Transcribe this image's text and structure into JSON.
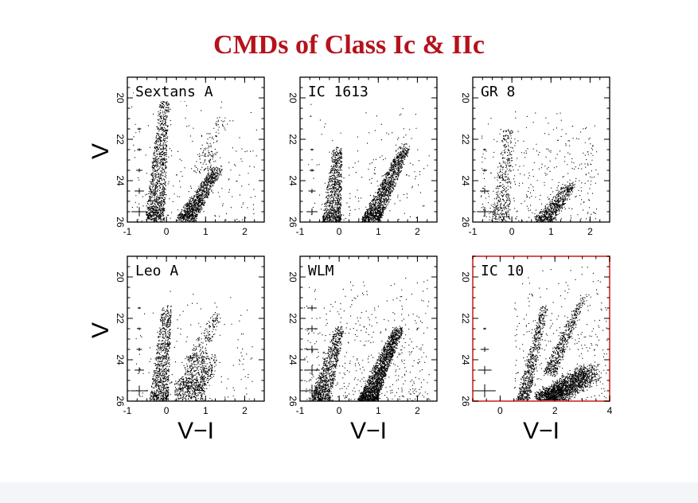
{
  "slide": {
    "title": "CMDs of Class Ic & IIc"
  },
  "colors": {
    "title": "#b5121b",
    "highlight_frame": "#d9534f",
    "points": "#000000"
  },
  "axes_titles": {
    "y": "V",
    "x": "V−I"
  },
  "chart_data": [
    {
      "type": "scatter",
      "name": "Sextans A",
      "label": "Sextans A",
      "xlim": [
        -1,
        2.5
      ],
      "ylim": [
        26,
        19
      ],
      "xticks": [
        -1,
        0,
        1,
        2
      ],
      "yticks": [
        20,
        22,
        24,
        26
      ],
      "features": [
        {
          "kind": "main_sequence",
          "x": [
            -0.3,
            -0.05
          ],
          "y": [
            25.8,
            20.0
          ],
          "n": 1200
        },
        {
          "kind": "red_giant_branch",
          "x": [
            0.5,
            1.3
          ],
          "y": [
            25.8,
            23.4
          ],
          "n": 1100
        },
        {
          "kind": "red_supergiants",
          "x": [
            0.9,
            1.4
          ],
          "y": [
            23.5,
            21.0
          ],
          "n": 120
        },
        {
          "kind": "field",
          "x": [
            -0.9,
            2.3
          ],
          "y": [
            26,
            19.5
          ],
          "n": 200
        }
      ],
      "error_bars": [
        {
          "v": 21.5,
          "dx": 0.05
        },
        {
          "v": 22.5,
          "dx": 0.06
        },
        {
          "v": 23.5,
          "dx": 0.08
        },
        {
          "v": 24.5,
          "dx": 0.12
        },
        {
          "v": 25.5,
          "dx": 0.2
        }
      ]
    },
    {
      "type": "scatter",
      "name": "IC 1613",
      "label": "IC 1613",
      "xlim": [
        -1,
        2.5
      ],
      "ylim": [
        26,
        19
      ],
      "xticks": [
        -1,
        0,
        1,
        2
      ],
      "yticks": [
        20,
        22,
        24,
        26
      ],
      "features": [
        {
          "kind": "main_sequence",
          "x": [
            -0.2,
            -0.05
          ],
          "y": [
            25.9,
            22.5
          ],
          "n": 900
        },
        {
          "kind": "red_giant_branch",
          "x": [
            0.8,
            1.7
          ],
          "y": [
            25.9,
            22.3
          ],
          "n": 1400
        },
        {
          "kind": "field",
          "x": [
            -0.8,
            2.3
          ],
          "y": [
            26,
            20.2
          ],
          "n": 180
        }
      ],
      "error_bars": [
        {
          "v": 22.5,
          "dx": 0.04
        },
        {
          "v": 23.5,
          "dx": 0.06
        },
        {
          "v": 24.5,
          "dx": 0.09
        },
        {
          "v": 25.5,
          "dx": 0.14
        }
      ]
    },
    {
      "type": "scatter",
      "name": "GR 8",
      "label": "GR 8",
      "xlim": [
        -1,
        2.5
      ],
      "ylim": [
        26,
        19
      ],
      "xticks": [
        -1,
        0,
        1,
        2
      ],
      "yticks": [
        20,
        22,
        24,
        26
      ],
      "features": [
        {
          "kind": "main_sequence",
          "x": [
            -0.3,
            -0.1
          ],
          "y": [
            25.9,
            21.5
          ],
          "n": 400
        },
        {
          "kind": "red_giant_branch",
          "x": [
            0.8,
            1.5
          ],
          "y": [
            25.9,
            24.2
          ],
          "n": 650
        },
        {
          "kind": "field",
          "x": [
            -0.8,
            2.2
          ],
          "y": [
            26,
            20.5
          ],
          "n": 380
        }
      ],
      "error_bars": [
        {
          "v": 22.5,
          "dx": 0.04
        },
        {
          "v": 23.5,
          "dx": 0.06
        },
        {
          "v": 24.5,
          "dx": 0.12
        },
        {
          "v": 25.5,
          "dx": 0.2
        }
      ]
    },
    {
      "type": "scatter",
      "name": "Leo A",
      "label": "Leo A",
      "xlim": [
        -1,
        2.5
      ],
      "ylim": [
        26,
        19
      ],
      "xticks": [
        -1,
        0,
        1,
        2
      ],
      "yticks": [
        20,
        22,
        24,
        26
      ],
      "features": [
        {
          "kind": "main_sequence",
          "x": [
            -0.2,
            0.0
          ],
          "y": [
            25.9,
            21.5
          ],
          "n": 900
        },
        {
          "kind": "red_clump",
          "x": [
            0.55,
            0.95
          ],
          "y": [
            25.6,
            24.0
          ],
          "n": 700
        },
        {
          "kind": "red_giant_branch",
          "x": [
            0.7,
            1.3
          ],
          "y": [
            24.0,
            21.8
          ],
          "n": 220
        },
        {
          "kind": "field",
          "x": [
            -0.8,
            2.2
          ],
          "y": [
            26,
            20.5
          ],
          "n": 150
        }
      ],
      "error_bars": [
        {
          "v": 21.5,
          "dx": 0.04
        },
        {
          "v": 22.5,
          "dx": 0.05
        },
        {
          "v": 23.5,
          "dx": 0.07
        },
        {
          "v": 24.5,
          "dx": 0.12
        },
        {
          "v": 25.5,
          "dx": 0.22
        }
      ]
    },
    {
      "type": "scatter",
      "name": "WLM",
      "label": "WLM",
      "xlim": [
        -1,
        2.5
      ],
      "ylim": [
        26,
        19
      ],
      "xticks": [
        -1,
        0,
        1,
        2
      ],
      "yticks": [
        20,
        22,
        24,
        26
      ],
      "features": [
        {
          "kind": "main_sequence",
          "x": [
            -0.5,
            0.0
          ],
          "y": [
            26.0,
            22.5
          ],
          "n": 1000
        },
        {
          "kind": "red_giant_branch",
          "x": [
            0.7,
            1.5
          ],
          "y": [
            26.0,
            22.5
          ],
          "n": 1900
        },
        {
          "kind": "field",
          "x": [
            -0.9,
            2.3
          ],
          "y": [
            26,
            20.0
          ],
          "n": 500
        }
      ],
      "error_bars": [
        {
          "v": 21.5,
          "dx": 0.12
        },
        {
          "v": 22.5,
          "dx": 0.14
        },
        {
          "v": 23.5,
          "dx": 0.16
        },
        {
          "v": 24.5,
          "dx": 0.2
        },
        {
          "v": 25.5,
          "dx": 0.26
        }
      ]
    },
    {
      "type": "scatter",
      "name": "IC 10",
      "label": "IC 10",
      "highlighted": true,
      "xlim": [
        -1,
        4
      ],
      "ylim": [
        26,
        19
      ],
      "xticks": [
        0,
        2,
        4
      ],
      "yticks": [
        20,
        22,
        24,
        26
      ],
      "features": [
        {
          "kind": "blue_plume",
          "x": [
            0.8,
            1.6
          ],
          "y": [
            26.0,
            21.5
          ],
          "n": 700
        },
        {
          "kind": "red_clump",
          "x": [
            1.6,
            3.3
          ],
          "y": [
            26.0,
            24.6
          ],
          "n": 2200
        },
        {
          "kind": "red_giant_branch",
          "x": [
            1.8,
            3.0
          ],
          "y": [
            24.6,
            21.0
          ],
          "n": 500
        },
        {
          "kind": "field",
          "x": [
            0.5,
            3.9
          ],
          "y": [
            26,
            19.2
          ],
          "n": 350
        }
      ],
      "error_bars": [
        {
          "v": 22.5,
          "dx": 0.05
        },
        {
          "v": 23.5,
          "dx": 0.15
        },
        {
          "v": 24.5,
          "dx": 0.25
        },
        {
          "v": 25.5,
          "dx": 0.4
        }
      ]
    }
  ]
}
